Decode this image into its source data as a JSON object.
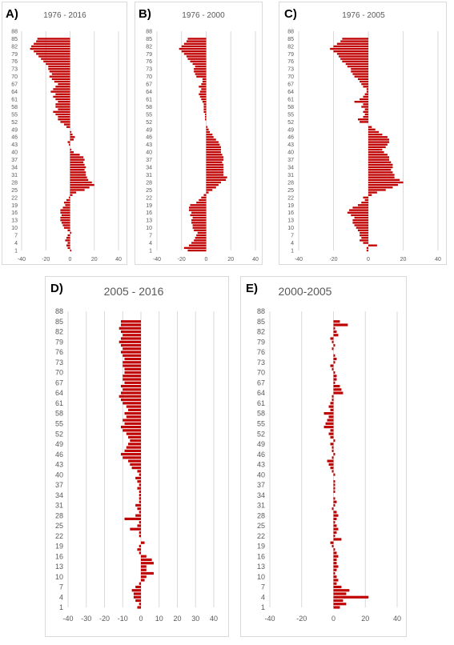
{
  "panels": [
    {
      "letter": "A)",
      "title": "1976 - 2016"
    },
    {
      "letter": "B)",
      "title": "1976 - 2000"
    },
    {
      "letter": "C)",
      "title": "1976 - 2005"
    },
    {
      "letter": "D)",
      "title": "2005 - 2016"
    },
    {
      "letter": "E)",
      "title": "2000-2005"
    }
  ],
  "colors": {
    "bar": "#c00000",
    "grid": "#d9d9d9",
    "text": "#595959"
  },
  "chart_data": [
    {
      "type": "bar",
      "orientation": "horizontal",
      "title": "1976 - 2016",
      "xlim": [
        -40,
        40
      ],
      "xticks": [
        -40,
        -20,
        0,
        20,
        40
      ],
      "ylim": [
        1,
        88
      ],
      "yticks": [
        1,
        4,
        7,
        10,
        13,
        16,
        19,
        22,
        25,
        28,
        31,
        34,
        37,
        40,
        43,
        46,
        49,
        52,
        55,
        58,
        61,
        64,
        67,
        70,
        73,
        76,
        79,
        82,
        85,
        88
      ],
      "values": [
        1,
        -2,
        -3,
        -2,
        -4,
        -3,
        -2,
        1,
        -2,
        -5,
        -6,
        -7,
        -8,
        -8,
        -7,
        -8,
        -8,
        -6,
        -4,
        -5,
        -3,
        -1,
        2,
        5,
        12,
        16,
        20,
        18,
        15,
        14,
        13,
        13,
        12,
        13,
        12,
        11,
        12,
        11,
        8,
        3,
        1,
        0,
        -1,
        -2,
        3,
        4,
        2,
        1,
        0,
        -3,
        -5,
        -8,
        -10,
        -10,
        -12,
        -14,
        -10,
        -12,
        -12,
        -10,
        -12,
        -14,
        -12,
        -16,
        -14,
        -12,
        -10,
        -13,
        -15,
        -17,
        -15,
        -17,
        -18,
        -18,
        -20,
        -22,
        -24,
        -26,
        -28,
        -30,
        -33,
        -32,
        -30,
        -28,
        -27,
        0,
        0,
        0
      ]
    },
    {
      "type": "bar",
      "orientation": "horizontal",
      "title": "1976 - 2000",
      "xlim": [
        -40,
        40
      ],
      "xticks": [
        -40,
        -20,
        0,
        20,
        40
      ],
      "ylim": [
        1,
        88
      ],
      "yticks": [
        1,
        4,
        7,
        10,
        13,
        16,
        19,
        22,
        25,
        28,
        31,
        34,
        37,
        40,
        43,
        46,
        49,
        52,
        55,
        58,
        61,
        64,
        67,
        70,
        73,
        76,
        79,
        82,
        85,
        88
      ],
      "values": [
        -15,
        -18,
        -14,
        -12,
        -10,
        -9,
        -8,
        -7,
        -10,
        -11,
        -11,
        -12,
        -12,
        -11,
        -13,
        -12,
        -14,
        -14,
        -13,
        -8,
        -6,
        -4,
        -2,
        2,
        5,
        8,
        10,
        12,
        16,
        17,
        14,
        14,
        14,
        14,
        14,
        13,
        14,
        14,
        13,
        12,
        12,
        12,
        11,
        10,
        8,
        6,
        5,
        3,
        2,
        1,
        0,
        0,
        -1,
        -1,
        -1,
        -2,
        -2,
        -2,
        -2,
        -3,
        -4,
        -5,
        -6,
        -5,
        -4,
        -6,
        -4,
        -3,
        -3,
        -8,
        -9,
        -10,
        -10,
        -9,
        -11,
        -13,
        -15,
        -16,
        -18,
        -20,
        -22,
        -20,
        -18,
        -16,
        -15,
        0,
        0,
        0
      ]
    },
    {
      "type": "bar",
      "orientation": "horizontal",
      "title": "1976 - 2005",
      "xlim": [
        -40,
        40
      ],
      "xticks": [
        -40,
        -20,
        0,
        20,
        40
      ],
      "ylim": [
        1,
        88
      ],
      "yticks": [
        1,
        4,
        7,
        10,
        13,
        16,
        19,
        22,
        25,
        28,
        31,
        34,
        37,
        40,
        43,
        46,
        49,
        52,
        55,
        58,
        61,
        64,
        67,
        70,
        73,
        76,
        79,
        82,
        85,
        88
      ],
      "values": [
        -1,
        -1,
        5,
        -3,
        -5,
        -4,
        -5,
        -5,
        -6,
        -7,
        -8,
        -9,
        -9,
        -8,
        -10,
        -12,
        -11,
        -9,
        -6,
        -4,
        -2,
        -3,
        2,
        5,
        10,
        14,
        17,
        20,
        18,
        15,
        15,
        14,
        13,
        14,
        14,
        13,
        12,
        12,
        11,
        9,
        8,
        10,
        11,
        12,
        12,
        11,
        8,
        6,
        4,
        2,
        0,
        -5,
        -6,
        -3,
        -2,
        -3,
        -2,
        -4,
        -3,
        -8,
        -5,
        -3,
        -2,
        -1,
        -1,
        -3,
        -4,
        -5,
        -6,
        -8,
        -9,
        -10,
        -10,
        -12,
        -13,
        -15,
        -16,
        -17,
        -18,
        -20,
        -22,
        -20,
        -18,
        -16,
        -15,
        0,
        0,
        0
      ]
    },
    {
      "type": "bar",
      "orientation": "horizontal",
      "title": "2005 - 2016",
      "xlim": [
        -40,
        40
      ],
      "xticks": [
        -40,
        -30,
        -20,
        -10,
        0,
        10,
        20,
        30,
        40
      ],
      "ylim": [
        1,
        88
      ],
      "yticks": [
        1,
        4,
        7,
        10,
        13,
        16,
        19,
        22,
        25,
        28,
        31,
        34,
        37,
        40,
        43,
        46,
        49,
        52,
        55,
        58,
        61,
        64,
        67,
        70,
        73,
        76,
        79,
        82,
        85,
        88
      ],
      "values": [
        -2,
        -1,
        -3,
        -4,
        -4,
        -5,
        -3,
        -1,
        2,
        3,
        7,
        3,
        3,
        7,
        6,
        3,
        -1,
        -2,
        -1,
        2,
        0,
        -1,
        -1,
        -6,
        -2,
        -1,
        -9,
        -3,
        -1,
        -2,
        -3,
        -1,
        -1,
        -1,
        -1,
        -2,
        -1,
        -2,
        -3,
        -1,
        -2,
        -5,
        -6,
        -7,
        -10,
        -11,
        -9,
        -8,
        -7,
        -6,
        -7,
        -8,
        -10,
        -11,
        -9,
        -10,
        -8,
        -9,
        -7,
        -8,
        -10,
        -11,
        -12,
        -11,
        -10,
        -11,
        -9,
        -10,
        -10,
        -9,
        -9,
        -10,
        -10,
        -9,
        -10,
        -11,
        -10,
        -11,
        -12,
        -11,
        -10,
        -11,
        -12,
        -11,
        -11,
        0,
        0,
        0
      ]
    },
    {
      "type": "bar",
      "orientation": "horizontal",
      "title": "2000-2005",
      "xlim": [
        -40,
        40
      ],
      "xticks": [
        -40,
        -20,
        0,
        20,
        40
      ],
      "ylim": [
        1,
        88
      ],
      "yticks": [
        1,
        4,
        7,
        10,
        13,
        16,
        19,
        22,
        25,
        28,
        31,
        34,
        37,
        40,
        43,
        46,
        49,
        52,
        55,
        58,
        61,
        64,
        67,
        70,
        73,
        76,
        79,
        82,
        85,
        88
      ],
      "values": [
        4,
        8,
        6,
        22,
        8,
        10,
        5,
        2,
        3,
        2,
        1,
        2,
        3,
        2,
        2,
        3,
        2,
        1,
        -1,
        -2,
        5,
        1,
        2,
        3,
        2,
        1,
        2,
        3,
        2,
        -1,
        1,
        2,
        1,
        0,
        1,
        1,
        1,
        1,
        0,
        1,
        -1,
        -2,
        -3,
        -4,
        -1,
        1,
        -1,
        -1,
        -2,
        1,
        -2,
        -3,
        -2,
        -6,
        -5,
        -4,
        -3,
        -6,
        -2,
        -3,
        -2,
        -1,
        -1,
        6,
        5,
        4,
        1,
        2,
        2,
        1,
        -1,
        -2,
        1,
        2,
        1,
        0,
        -1,
        1,
        -1,
        -2,
        3,
        2,
        1,
        9,
        4,
        0,
        0,
        0
      ]
    }
  ]
}
